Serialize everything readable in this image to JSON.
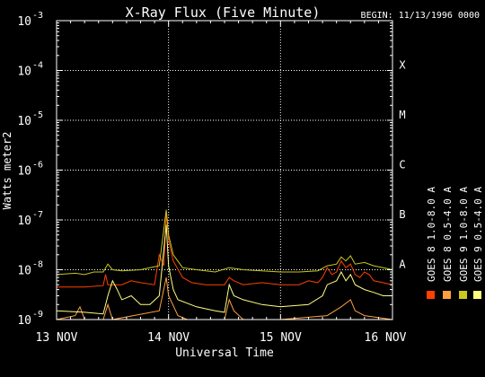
{
  "chart_data": {
    "type": "line",
    "title": "X-Ray Flux (Five Minute)",
    "begin_label": "BEGIN: 11/13/1996 0000",
    "xlabel": "Universal Time",
    "ylabel": "Watts meter",
    "ylabel_exp": "2",
    "y_scale": "log",
    "ylim": [
      1e-09,
      0.001
    ],
    "y_ticks": [
      {
        "value": 1e-09,
        "mantissa": "10",
        "exp": "-9"
      },
      {
        "value": 1e-08,
        "mantissa": "10",
        "exp": "-8"
      },
      {
        "value": 1e-07,
        "mantissa": "10",
        "exp": "-7"
      },
      {
        "value": 1e-06,
        "mantissa": "10",
        "exp": "-6"
      },
      {
        "value": 1e-05,
        "mantissa": "10",
        "exp": "-5"
      },
      {
        "value": 0.0001,
        "mantissa": "10",
        "exp": "-4"
      },
      {
        "value": 0.001,
        "mantissa": "10",
        "exp": "-3"
      }
    ],
    "xlim": [
      "1996-11-13T00:00",
      "1996-11-16T00:00"
    ],
    "x_ticks": [
      {
        "value": "1996-11-13T00:00",
        "label": "13 NOV"
      },
      {
        "value": "1996-11-14T00:00",
        "label": "14 NOV"
      },
      {
        "value": "1996-11-15T00:00",
        "label": "15 NOV"
      },
      {
        "value": "1996-11-16T00:00",
        "label": "16 NOV"
      }
    ],
    "grid": true,
    "flare_classes": [
      {
        "label": "A",
        "value": 1e-08
      },
      {
        "label": "B",
        "value": 1e-07
      },
      {
        "label": "C",
        "value": 1e-06
      },
      {
        "label": "M",
        "value": 1e-05
      },
      {
        "label": "X",
        "value": 0.0001
      }
    ],
    "legend_position": "right",
    "legend": [
      {
        "name": "GOES 8 1.0-8.0 A",
        "color": "#ff4000"
      },
      {
        "name": "GOES 8 0.5-4.0 A",
        "color": "#ffa040"
      },
      {
        "name": "GOES 9 1.0-8.0 A",
        "color": "#c8c820"
      },
      {
        "name": "GOES 9 0.5-4.0 A",
        "color": "#ffff80"
      }
    ],
    "series": [
      {
        "name": "GOES 8 1.0-8.0 A",
        "color": "#ff4000",
        "points": [
          [
            "1996-11-13T00:00",
            4.5e-09
          ],
          [
            "1996-11-13T06:00",
            4.5e-09
          ],
          [
            "1996-11-13T10:00",
            4.8e-09
          ],
          [
            "1996-11-13T10:30",
            8e-09
          ],
          [
            "1996-11-13T11:00",
            5e-09
          ],
          [
            "1996-11-13T14:00",
            5e-09
          ],
          [
            "1996-11-13T16:00",
            6e-09
          ],
          [
            "1996-11-13T18:00",
            5.5e-09
          ],
          [
            "1996-11-13T21:00",
            5e-09
          ],
          [
            "1996-11-13T22:00",
            2e-08
          ],
          [
            "1996-11-13T23:00",
            1.2e-08
          ],
          [
            "1996-11-13T23:30",
            1.4e-07
          ],
          [
            "1996-11-14T00:00",
            4e-08
          ],
          [
            "1996-11-14T01:00",
            1.5e-08
          ],
          [
            "1996-11-14T03:00",
            7e-09
          ],
          [
            "1996-11-14T05:00",
            5.5e-09
          ],
          [
            "1996-11-14T08:00",
            5e-09
          ],
          [
            "1996-11-14T12:00",
            5e-09
          ],
          [
            "1996-11-14T13:00",
            7e-09
          ],
          [
            "1996-11-14T14:00",
            6e-09
          ],
          [
            "1996-11-14T16:00",
            5e-09
          ],
          [
            "1996-11-14T20:00",
            5.5e-09
          ],
          [
            "1996-11-15T00:00",
            5e-09
          ],
          [
            "1996-11-15T04:00",
            5e-09
          ],
          [
            "1996-11-15T06:00",
            6e-09
          ],
          [
            "1996-11-15T08:00",
            5.5e-09
          ],
          [
            "1996-11-15T09:00",
            7e-09
          ],
          [
            "1996-11-15T10:00",
            1.1e-08
          ],
          [
            "1996-11-15T11:00",
            8e-09
          ],
          [
            "1996-11-15T12:00",
            9e-09
          ],
          [
            "1996-11-15T13:00",
            1.5e-08
          ],
          [
            "1996-11-15T14:00",
            1.1e-08
          ],
          [
            "1996-11-15T15:00",
            1.3e-08
          ],
          [
            "1996-11-15T16:00",
            8e-09
          ],
          [
            "1996-11-15T17:00",
            7e-09
          ],
          [
            "1996-11-15T18:00",
            9e-09
          ],
          [
            "1996-11-15T19:00",
            8e-09
          ],
          [
            "1996-11-15T20:00",
            6e-09
          ],
          [
            "1996-11-15T22:00",
            5.5e-09
          ],
          [
            "1996-11-16T00:00",
            5e-09
          ]
        ]
      },
      {
        "name": "GOES 8 0.5-4.0 A",
        "color": "#ffa040",
        "points": [
          [
            "1996-11-13T00:00",
            1e-09
          ],
          [
            "1996-11-13T04:00",
            1.2e-09
          ],
          [
            "1996-11-13T05:00",
            1.8e-09
          ],
          [
            "1996-11-13T06:00",
            1e-09
          ],
          [
            "1996-11-13T10:00",
            1e-09
          ],
          [
            "1996-11-13T11:00",
            2e-09
          ],
          [
            "1996-11-13T12:00",
            1e-09
          ],
          [
            "1996-11-13T22:00",
            1.5e-09
          ],
          [
            "1996-11-13T23:30",
            7e-09
          ],
          [
            "1996-11-14T00:00",
            3e-09
          ],
          [
            "1996-11-14T02:00",
            1.2e-09
          ],
          [
            "1996-11-14T04:00",
            1e-09
          ],
          [
            "1996-11-14T12:00",
            1e-09
          ],
          [
            "1996-11-14T13:00",
            2.5e-09
          ],
          [
            "1996-11-14T14:00",
            1.5e-09
          ],
          [
            "1996-11-14T16:00",
            1e-09
          ],
          [
            "1996-11-15T00:00",
            1e-09
          ],
          [
            "1996-11-15T10:00",
            1.2e-09
          ],
          [
            "1996-11-15T13:00",
            1.8e-09
          ],
          [
            "1996-11-15T15:00",
            2.5e-09
          ],
          [
            "1996-11-15T16:00",
            1.5e-09
          ],
          [
            "1996-11-15T18:00",
            1.2e-09
          ],
          [
            "1996-11-16T00:00",
            1e-09
          ]
        ]
      },
      {
        "name": "GOES 9 1.0-8.0 A",
        "color": "#c8c820",
        "points": [
          [
            "1996-11-13T00:00",
            8e-09
          ],
          [
            "1996-11-13T04:00",
            8.5e-09
          ],
          [
            "1996-11-13T06:00",
            8e-09
          ],
          [
            "1996-11-13T08:00",
            9e-09
          ],
          [
            "1996-11-13T10:00",
            9e-09
          ],
          [
            "1996-11-13T11:00",
            1.3e-08
          ],
          [
            "1996-11-13T12:00",
            1e-08
          ],
          [
            "1996-11-13T14:00",
            9.5e-09
          ],
          [
            "1996-11-13T18:00",
            1e-08
          ],
          [
            "1996-11-13T20:00",
            1.1e-08
          ],
          [
            "1996-11-13T22:00",
            1.2e-08
          ],
          [
            "1996-11-13T23:30",
            1.6e-07
          ],
          [
            "1996-11-14T00:00",
            5e-08
          ],
          [
            "1996-11-14T01:00",
            2e-08
          ],
          [
            "1996-11-14T03:00",
            1.1e-08
          ],
          [
            "1996-11-14T06:00",
            1e-08
          ],
          [
            "1996-11-14T10:00",
            9e-09
          ],
          [
            "1996-11-14T13:00",
            1.1e-08
          ],
          [
            "1996-11-14T16:00",
            1e-08
          ],
          [
            "1996-11-14T20:00",
            9.5e-09
          ],
          [
            "1996-11-15T00:00",
            9e-09
          ],
          [
            "1996-11-15T04:00",
            9e-09
          ],
          [
            "1996-11-15T08:00",
            9.5e-09
          ],
          [
            "1996-11-15T10:00",
            1.2e-08
          ],
          [
            "1996-11-15T12:00",
            1.3e-08
          ],
          [
            "1996-11-15T13:00",
            1.8e-08
          ],
          [
            "1996-11-15T14:00",
            1.5e-08
          ],
          [
            "1996-11-15T15:00",
            1.9e-08
          ],
          [
            "1996-11-15T16:00",
            1.3e-08
          ],
          [
            "1996-11-15T18:00",
            1.4e-08
          ],
          [
            "1996-11-15T20:00",
            1.2e-08
          ],
          [
            "1996-11-15T22:00",
            1.1e-08
          ],
          [
            "1996-11-16T00:00",
            1e-08
          ]
        ]
      },
      {
        "name": "GOES 9 0.5-4.0 A",
        "color": "#ffff80",
        "points": [
          [
            "1996-11-13T00:00",
            1.5e-09
          ],
          [
            "1996-11-13T06:00",
            1.4e-09
          ],
          [
            "1996-11-13T10:00",
            1.3e-09
          ],
          [
            "1996-11-13T11:00",
            3e-09
          ],
          [
            "1996-11-13T12:00",
            6e-09
          ],
          [
            "1996-11-13T13:00",
            4e-09
          ],
          [
            "1996-11-13T14:00",
            2.5e-09
          ],
          [
            "1996-11-13T16:00",
            3e-09
          ],
          [
            "1996-11-13T18:00",
            2e-09
          ],
          [
            "1996-11-13T20:00",
            2e-09
          ],
          [
            "1996-11-13T22:00",
            3e-09
          ],
          [
            "1996-11-13T23:30",
            8e-08
          ],
          [
            "1996-11-14T00:00",
            1.2e-08
          ],
          [
            "1996-11-14T01:00",
            4e-09
          ],
          [
            "1996-11-14T02:00",
            2.5e-09
          ],
          [
            "1996-11-14T06:00",
            1.8e-09
          ],
          [
            "1996-11-14T10:00",
            1.5e-09
          ],
          [
            "1996-11-14T12:00",
            1.4e-09
          ],
          [
            "1996-11-14T13:00",
            5e-09
          ],
          [
            "1996-11-14T14:00",
            3e-09
          ],
          [
            "1996-11-14T16:00",
            2.5e-09
          ],
          [
            "1996-11-14T20:00",
            2e-09
          ],
          [
            "1996-11-15T00:00",
            1.8e-09
          ],
          [
            "1996-11-15T06:00",
            2e-09
          ],
          [
            "1996-11-15T09:00",
            3e-09
          ],
          [
            "1996-11-15T10:00",
            5e-09
          ],
          [
            "1996-11-15T12:00",
            6e-09
          ],
          [
            "1996-11-15T13:00",
            9e-09
          ],
          [
            "1996-11-15T14:00",
            6e-09
          ],
          [
            "1996-11-15T15:00",
            8e-09
          ],
          [
            "1996-11-15T16:00",
            5e-09
          ],
          [
            "1996-11-15T18:00",
            4e-09
          ],
          [
            "1996-11-15T20:00",
            3.5e-09
          ],
          [
            "1996-11-15T22:00",
            3e-09
          ],
          [
            "1996-11-16T00:00",
            3e-09
          ]
        ]
      }
    ]
  }
}
